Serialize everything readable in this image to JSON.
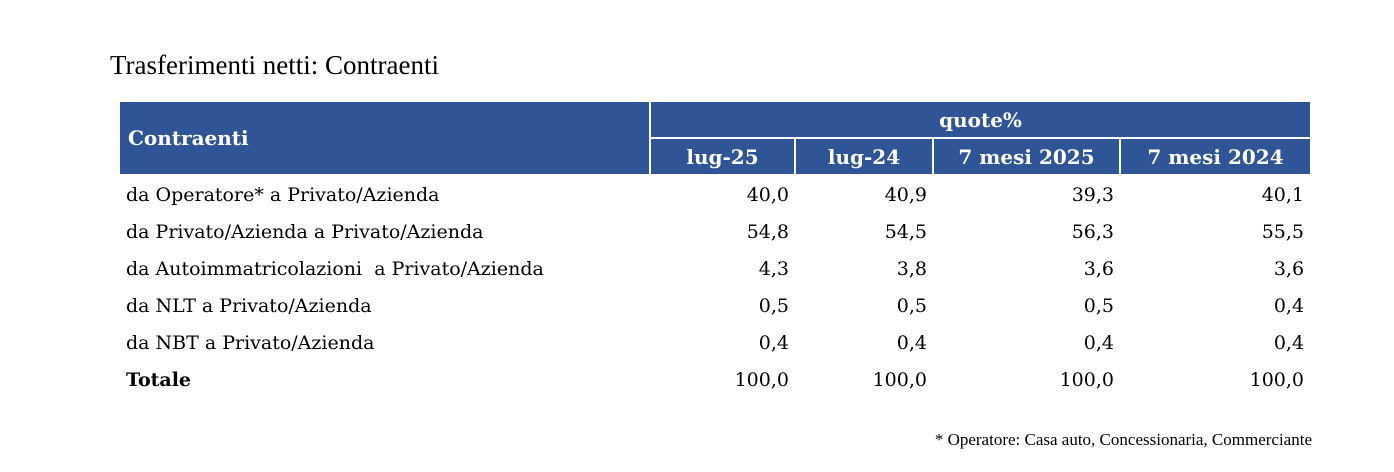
{
  "title": "Trasferimenti netti: Contraenti",
  "table": {
    "header": {
      "label": "Contraenti",
      "group": "quote%",
      "columns": [
        "lug-25",
        "lug-24",
        "7 mesi 2025",
        "7 mesi 2024"
      ]
    },
    "rows": [
      [
        "da Operatore* a Privato/Azienda",
        "40,0",
        "40,9",
        "39,3",
        "40,1"
      ],
      [
        "da Privato/Azienda a Privato/Azienda",
        "54,8",
        "54,5",
        "56,3",
        "55,5"
      ],
      [
        "da Autoimmatricolazioni  a Privato/Azienda",
        "4,3",
        "3,8",
        "3,6",
        "3,6"
      ],
      [
        "da NLT a Privato/Azienda",
        "0,5",
        "0,5",
        "0,5",
        "0,4"
      ],
      [
        "da NBT a Privato/Azienda",
        "0,4",
        "0,4",
        "0,4",
        "0,4"
      ],
      [
        "Totale",
        "100,0",
        "100,0",
        "100,0",
        "100,0"
      ]
    ]
  },
  "footnote": "* Operatore: Casa auto, Concessionaria, Commerciante"
}
